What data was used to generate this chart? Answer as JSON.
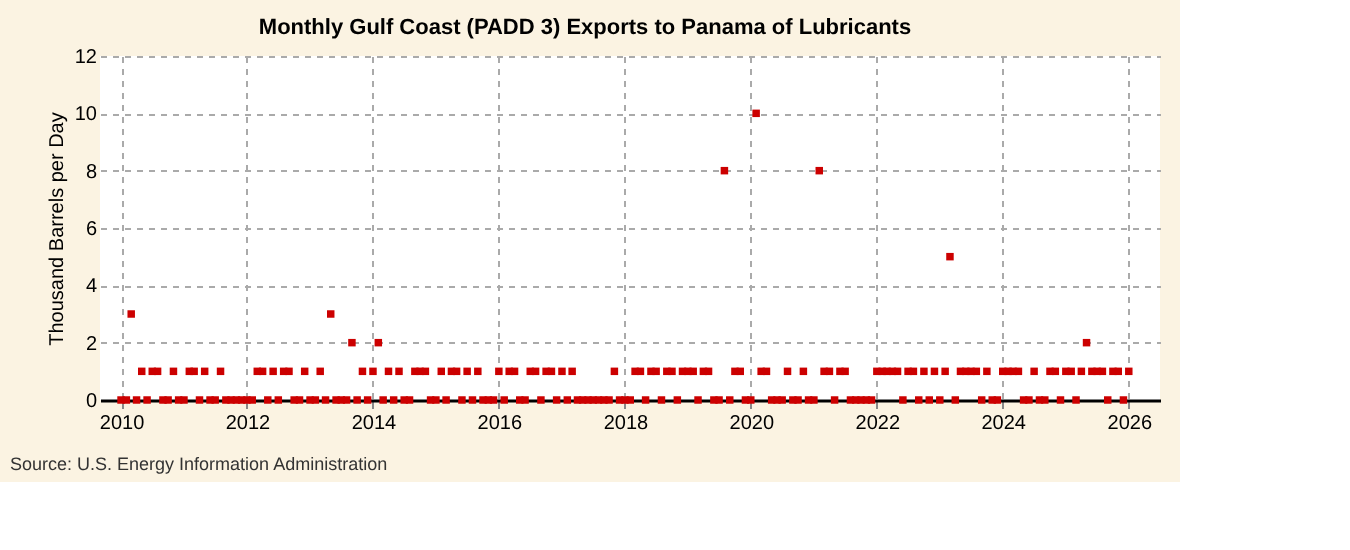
{
  "chart_data": {
    "type": "scatter",
    "title": "Monthly Gulf Coast (PADD 3) Exports to Panama of Lubricants",
    "ylabel": "Thousand Barrels per Day",
    "annotations": [
      "Source: U.S. Energy Information Administration"
    ],
    "x": [
      "2010-01",
      "2010-02",
      "2010-03",
      "2010-04",
      "2010-05",
      "2010-06",
      "2010-07",
      "2010-08",
      "2010-09",
      "2010-10",
      "2010-11",
      "2010-12",
      "2011-01",
      "2011-02",
      "2011-03",
      "2011-04",
      "2011-05",
      "2011-06",
      "2011-07",
      "2011-08",
      "2011-09",
      "2011-10",
      "2011-11",
      "2011-12",
      "2012-01",
      "2012-02",
      "2012-03",
      "2012-04",
      "2012-05",
      "2012-06",
      "2012-07",
      "2012-08",
      "2012-09",
      "2012-10",
      "2012-11",
      "2012-12",
      "2013-01",
      "2013-02",
      "2013-03",
      "2013-04",
      "2013-05",
      "2013-06",
      "2013-07",
      "2013-08",
      "2013-09",
      "2013-10",
      "2013-11",
      "2013-12",
      "2014-01",
      "2014-02",
      "2014-03",
      "2014-04",
      "2014-05",
      "2014-06",
      "2014-07",
      "2014-08",
      "2014-09",
      "2014-10",
      "2014-11",
      "2014-12",
      "2015-01",
      "2015-02",
      "2015-03",
      "2015-04",
      "2015-05",
      "2015-06",
      "2015-07",
      "2015-08",
      "2015-09",
      "2015-10",
      "2015-11",
      "2015-12",
      "2016-01",
      "2016-02",
      "2016-03",
      "2016-04",
      "2016-05",
      "2016-06",
      "2016-07",
      "2016-08",
      "2016-09",
      "2016-10",
      "2016-11",
      "2016-12",
      "2017-01",
      "2017-02",
      "2017-03",
      "2017-04",
      "2017-05",
      "2017-06",
      "2017-07",
      "2017-08",
      "2017-09",
      "2017-10",
      "2017-11",
      "2017-12",
      "2018-01",
      "2018-02",
      "2018-03",
      "2018-04",
      "2018-05",
      "2018-06",
      "2018-07",
      "2018-08",
      "2018-09",
      "2018-10",
      "2018-11",
      "2018-12",
      "2019-01",
      "2019-02",
      "2019-03",
      "2019-04",
      "2019-05",
      "2019-06",
      "2019-07",
      "2019-08",
      "2019-09",
      "2019-10",
      "2019-11",
      "2019-12",
      "2020-01",
      "2020-02",
      "2020-03",
      "2020-04",
      "2020-05",
      "2020-06",
      "2020-07",
      "2020-08",
      "2020-09",
      "2020-10",
      "2020-11",
      "2020-12",
      "2021-01",
      "2021-02",
      "2021-03",
      "2021-04",
      "2021-05",
      "2021-06",
      "2021-07",
      "2021-08",
      "2021-09",
      "2021-10",
      "2021-11",
      "2021-12",
      "2022-01",
      "2022-02",
      "2022-03",
      "2022-04",
      "2022-05",
      "2022-06",
      "2022-07",
      "2022-08",
      "2022-09",
      "2022-10",
      "2022-11",
      "2022-12",
      "2023-01",
      "2023-02",
      "2023-03",
      "2023-04",
      "2023-05",
      "2023-06",
      "2023-07",
      "2023-08",
      "2023-09",
      "2023-10",
      "2023-11",
      "2023-12",
      "2024-01",
      "2024-02",
      "2024-03",
      "2024-04",
      "2024-05",
      "2024-06",
      "2024-07",
      "2024-08",
      "2024-09",
      "2024-10",
      "2024-11",
      "2024-12",
      "2025-01",
      "2025-02",
      "2025-03",
      "2025-04",
      "2025-05",
      "2025-06",
      "2025-07",
      "2025-08",
      "2025-09",
      "2025-10",
      "2025-11",
      "2025-12",
      "2026-01"
    ],
    "series": [
      {
        "color": "#cc0000",
        "values": [
          0,
          0,
          3,
          0,
          1,
          0,
          1,
          1,
          0,
          0,
          1,
          0,
          0,
          1,
          1,
          0,
          1,
          0,
          0,
          1,
          0,
          0,
          0,
          0,
          0,
          0,
          1,
          1,
          0,
          1,
          0,
          1,
          1,
          0,
          0,
          1,
          0,
          0,
          1,
          0,
          3,
          0,
          0,
          0,
          2,
          0,
          1,
          0,
          1,
          2,
          0,
          1,
          0,
          1,
          0,
          0,
          1,
          1,
          1,
          0,
          0,
          1,
          0,
          1,
          1,
          0,
          1,
          0,
          1,
          0,
          0,
          0,
          1,
          0,
          1,
          1,
          0,
          0,
          1,
          1,
          0,
          1,
          1,
          0,
          1,
          0,
          1,
          0,
          0,
          0,
          0,
          0,
          0,
          0,
          1,
          0,
          0,
          0,
          1,
          1,
          0,
          1,
          1,
          0,
          1,
          1,
          0,
          1,
          1,
          1,
          0,
          1,
          1,
          0,
          0,
          8,
          0,
          1,
          1,
          0,
          0,
          10,
          1,
          1,
          0,
          0,
          0,
          1,
          0,
          0,
          1,
          0,
          0,
          8,
          1,
          1,
          0,
          1,
          1,
          0,
          0,
          0,
          0,
          0,
          1,
          1,
          1,
          1,
          1,
          0,
          1,
          1,
          0,
          1,
          0,
          1,
          0,
          1,
          5,
          0,
          1,
          1,
          1,
          1,
          0,
          1,
          0,
          0,
          1,
          1,
          1,
          1,
          0,
          0,
          1,
          0,
          0,
          1,
          1,
          0,
          1,
          1,
          0,
          1,
          2,
          1,
          1,
          1,
          0,
          1,
          1,
          0,
          1
        ]
      }
    ],
    "xlim": [
      "2009-09",
      "2026-07"
    ],
    "xticks": [
      "2010",
      "2012",
      "2014",
      "2016",
      "2018",
      "2020",
      "2022",
      "2024",
      "2026"
    ],
    "ylim": [
      0,
      12
    ],
    "yticks": [
      0,
      2,
      4,
      6,
      8,
      10,
      12
    ],
    "grid": true,
    "marker": "square",
    "line_style": "none"
  }
}
